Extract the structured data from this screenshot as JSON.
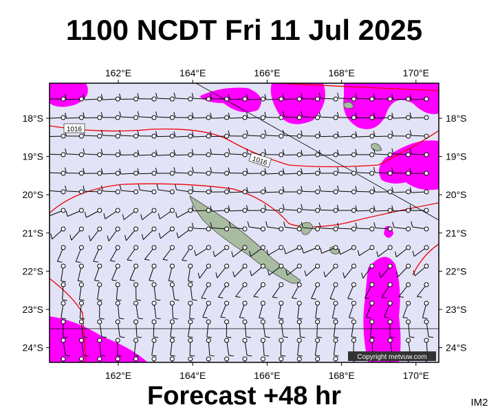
{
  "title": "1100 NCDT Fri 11 Jul 2025",
  "footer": "Forecast +48 hr",
  "corner_label": "IM2",
  "copyright": "Copyright metvuw.com",
  "longitude_labels": [
    "162°E",
    "164°E",
    "166°E",
    "168°E",
    "170°E"
  ],
  "latitude_labels": [
    "18°S",
    "19°S",
    "20°S",
    "21°S",
    "22°S",
    "23°S",
    "24°S"
  ],
  "isobar_labels": [
    "1016",
    "1016"
  ]
}
